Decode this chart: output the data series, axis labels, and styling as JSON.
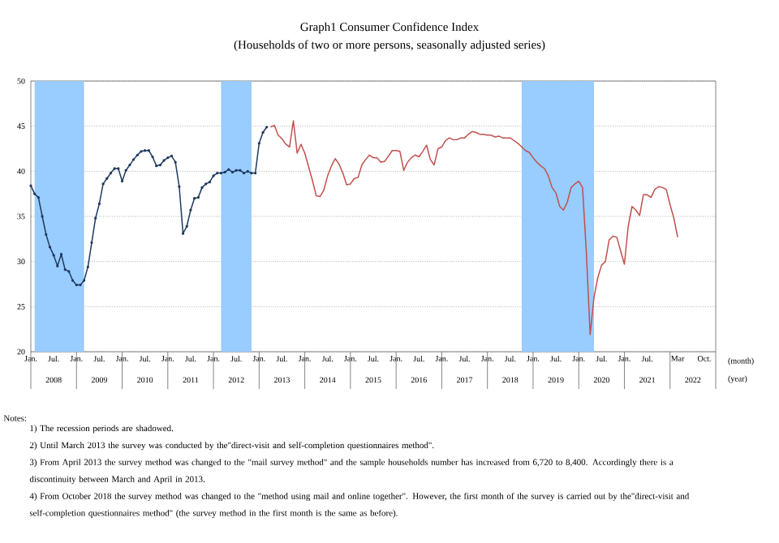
{
  "chart_data": {
    "type": "line",
    "title": "Graph1 Consumer Confidence Index",
    "subtitle": "(Households of two or more persons, seasonally adjusted series)",
    "xlabel": "(month)",
    "xlim": [
      "2008-01",
      "2023-01"
    ],
    "ylim": [
      20,
      50
    ],
    "yticks": [
      20,
      25,
      30,
      35,
      40,
      45,
      50
    ],
    "xticks": [
      {
        "value": "2008-01",
        "label": "Jan."
      },
      {
        "value": "2008-07",
        "label": "Jul."
      },
      {
        "value": "2009-01",
        "label": "Jan."
      },
      {
        "value": "2009-07",
        "label": "Jul."
      },
      {
        "value": "2010-01",
        "label": "Jan."
      },
      {
        "value": "2010-07",
        "label": "Jul."
      },
      {
        "value": "2011-01",
        "label": "Jan."
      },
      {
        "value": "2011-07",
        "label": "Jul."
      },
      {
        "value": "2012-01",
        "label": "Jan."
      },
      {
        "value": "2012-07",
        "label": "Jul."
      },
      {
        "value": "2013-01",
        "label": "Jan."
      },
      {
        "value": "2013-07",
        "label": "Jul."
      },
      {
        "value": "2014-01",
        "label": "Jan."
      },
      {
        "value": "2014-07",
        "label": "Jul."
      },
      {
        "value": "2015-01",
        "label": "Jan."
      },
      {
        "value": "2015-07",
        "label": "Jul."
      },
      {
        "value": "2016-01",
        "label": "Jan."
      },
      {
        "value": "2016-07",
        "label": "Jul."
      },
      {
        "value": "2017-01",
        "label": "Jan."
      },
      {
        "value": "2017-07",
        "label": "Jul."
      },
      {
        "value": "2018-01",
        "label": "Jan."
      },
      {
        "value": "2018-07",
        "label": "Jul."
      },
      {
        "value": "2019-01",
        "label": "Jan."
      },
      {
        "value": "2019-07",
        "label": "Jul."
      },
      {
        "value": "2020-01",
        "label": "Jan."
      },
      {
        "value": "2020-07",
        "label": "Jul."
      },
      {
        "value": "2021-01",
        "label": "Jan."
      },
      {
        "value": "2021-07",
        "label": "Jul."
      },
      {
        "value": "2022-03",
        "label": "Mar"
      },
      {
        "value": "2022-10",
        "label": "Oct."
      }
    ],
    "grid": "y",
    "bands": [
      {
        "axis": "x",
        "from": "2008-02",
        "to": "2009-03",
        "color": "#99ccff"
      },
      {
        "axis": "x",
        "from": "2012-03",
        "to": "2012-11",
        "color": "#99ccff"
      },
      {
        "axis": "x",
        "from": "2018-10",
        "to": "2020-05",
        "color": "#99ccff"
      }
    ],
    "series": [
      {
        "color": "#1f3a60",
        "marker": "circle",
        "x": [
          "2008-01",
          "2008-02",
          "2008-03",
          "2008-04",
          "2008-05",
          "2008-06",
          "2008-07",
          "2008-08",
          "2008-09",
          "2008-10",
          "2008-11",
          "2008-12",
          "2009-01",
          "2009-02",
          "2009-03",
          "2009-04",
          "2009-05",
          "2009-06",
          "2009-07",
          "2009-08",
          "2009-09",
          "2009-10",
          "2009-11",
          "2009-12",
          "2010-01",
          "2010-02",
          "2010-03",
          "2010-04",
          "2010-05",
          "2010-06",
          "2010-07",
          "2010-08",
          "2010-09",
          "2010-10",
          "2010-11",
          "2010-12",
          "2011-01",
          "2011-02",
          "2011-03",
          "2011-04",
          "2011-05",
          "2011-06",
          "2011-07",
          "2011-08",
          "2011-09",
          "2011-10",
          "2011-11",
          "2011-12",
          "2012-01",
          "2012-02",
          "2012-03",
          "2012-04",
          "2012-05",
          "2012-06",
          "2012-07",
          "2012-08",
          "2012-09",
          "2012-10",
          "2012-11",
          "2012-12",
          "2013-01",
          "2013-02",
          "2013-03"
        ],
        "values": [
          38.4,
          37.5,
          37.1,
          35.0,
          33.0,
          31.6,
          30.7,
          29.5,
          30.8,
          29.1,
          28.9,
          27.9,
          27.4,
          27.4,
          27.9,
          29.4,
          32.1,
          34.8,
          36.4,
          38.6,
          39.2,
          39.8,
          40.3,
          40.3,
          38.9,
          40.1,
          40.7,
          41.3,
          41.8,
          42.2,
          42.3,
          42.3,
          41.6,
          40.6,
          40.7,
          41.2,
          41.5,
          41.7,
          41.0,
          38.3,
          33.1,
          33.9,
          35.7,
          37.0,
          37.1,
          38.2,
          38.6,
          38.8,
          39.5,
          39.8,
          39.8,
          39.9,
          40.2,
          39.9,
          40.1,
          40.1,
          39.8,
          40.0,
          39.8,
          39.8,
          43.1,
          44.3,
          44.9
        ]
      },
      {
        "color": "#c0504d",
        "marker": "none",
        "x": [
          "2013-04",
          "2013-05",
          "2013-06",
          "2013-07",
          "2013-08",
          "2013-09",
          "2013-10",
          "2013-11",
          "2013-12",
          "2014-01",
          "2014-02",
          "2014-03",
          "2014-04",
          "2014-05",
          "2014-06",
          "2014-07",
          "2014-08",
          "2014-09",
          "2014-10",
          "2014-11",
          "2014-12",
          "2015-01",
          "2015-02",
          "2015-03",
          "2015-04",
          "2015-05",
          "2015-06",
          "2015-07",
          "2015-08",
          "2015-09",
          "2015-10",
          "2015-11",
          "2015-12",
          "2016-01",
          "2016-02",
          "2016-03",
          "2016-04",
          "2016-05",
          "2016-06",
          "2016-07",
          "2016-08",
          "2016-09",
          "2016-10",
          "2016-11",
          "2016-12",
          "2017-01",
          "2017-02",
          "2017-03",
          "2017-04",
          "2017-05",
          "2017-06",
          "2017-07",
          "2017-08",
          "2017-09",
          "2017-10",
          "2017-11",
          "2017-12",
          "2018-01",
          "2018-02",
          "2018-03",
          "2018-04",
          "2018-05",
          "2018-06",
          "2018-07",
          "2018-08",
          "2018-09",
          "2018-10",
          "2018-11",
          "2018-12",
          "2019-01",
          "2019-02",
          "2019-03",
          "2019-04",
          "2019-05",
          "2019-06",
          "2019-07",
          "2019-08",
          "2019-09",
          "2019-10",
          "2019-11",
          "2019-12",
          "2020-01",
          "2020-02",
          "2020-03",
          "2020-04",
          "2020-05",
          "2020-06",
          "2020-07",
          "2020-08",
          "2020-09",
          "2020-10",
          "2020-11",
          "2020-12",
          "2021-01",
          "2021-02",
          "2021-03",
          "2021-04",
          "2021-05",
          "2021-06",
          "2021-07",
          "2021-08",
          "2021-09",
          "2021-10",
          "2021-11",
          "2021-12",
          "2022-01",
          "2022-02",
          "2022-03"
        ],
        "values": [
          44.9,
          45.1,
          44.0,
          43.6,
          43.0,
          42.7,
          45.6,
          42.0,
          43.0,
          42.0,
          40.5,
          39.0,
          37.3,
          37.2,
          37.9,
          39.5,
          40.6,
          41.4,
          40.8,
          39.8,
          38.5,
          38.6,
          39.2,
          39.3,
          40.7,
          41.3,
          41.8,
          41.5,
          41.5,
          41.0,
          41.1,
          41.7,
          42.3,
          42.3,
          42.2,
          40.1,
          41.0,
          41.5,
          41.8,
          41.6,
          42.2,
          42.9,
          41.3,
          40.7,
          42.5,
          42.7,
          43.4,
          43.7,
          43.5,
          43.5,
          43.7,
          43.7,
          44.1,
          44.4,
          44.3,
          44.1,
          44.1,
          44.0,
          44.0,
          43.8,
          43.9,
          43.7,
          43.7,
          43.7,
          43.4,
          43.1,
          42.7,
          42.3,
          42.1,
          41.5,
          41.0,
          40.6,
          40.3,
          39.5,
          38.2,
          37.6,
          36.1,
          35.7,
          36.6,
          38.2,
          38.6,
          38.9,
          38.2,
          31.0,
          21.9,
          26.0,
          28.2,
          29.6,
          30.0,
          32.4,
          32.8,
          32.7,
          31.2,
          29.7,
          33.9,
          36.1,
          35.7,
          35.1,
          37.4,
          37.4,
          37.1,
          38.0,
          38.3,
          38.2,
          38.0,
          36.3,
          34.8,
          32.7
        ]
      }
    ],
    "annotations": [
      "2008",
      "2009",
      "2010",
      "2011",
      "2012",
      "2013",
      "2014",
      "2015",
      "2016",
      "2017",
      "2018",
      "2019",
      "2020",
      "2021",
      "2022",
      "(year)",
      "Notes:",
      "1) The recession periods are shadowed.",
      "2) Until March 2013 the survey was conducted by the\"direct-visit and self-completion questionnaires method\".",
      "3) From April 2013 the survey method was changed to the \"mail survey method\" and the sample households number has increased from 6,720 to 8,400. Accordingly there is a discontinuity between March and April in 2013.",
      "4) From October 2018 the survey method was changed to the \"method using mail and online together\". However, the first month of the survey is carried out by the\"direct-visit and self-completion questionnaires method\" (the survey method in the first month is the same as before)."
    ]
  }
}
